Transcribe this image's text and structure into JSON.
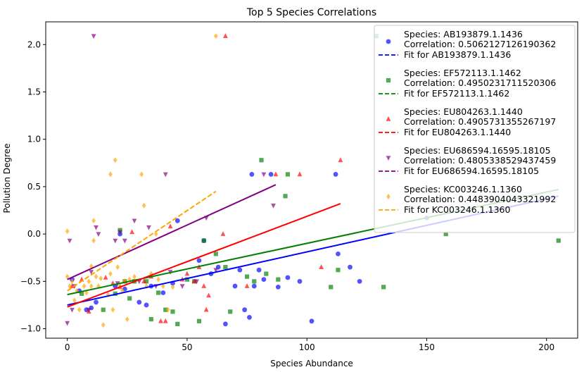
{
  "chart_data": {
    "type": "scatter",
    "title": "Top 5 Species Correlations",
    "xlabel": "Species Abundance",
    "ylabel": "Pollution Degree",
    "xlim": [
      -9,
      213
    ],
    "ylim": [
      -1.1,
      2.24
    ],
    "xticks": [
      0,
      50,
      100,
      150,
      200
    ],
    "yticks": [
      -1.0,
      -0.5,
      0.0,
      0.5,
      1.0,
      1.5,
      2.0
    ],
    "xtick_labels": [
      "0",
      "50",
      "100",
      "150",
      "200"
    ],
    "ytick_labels": [
      "−1.0",
      "−0.5",
      "0.0",
      "0.5",
      "1.0",
      "1.5",
      "2.0"
    ],
    "grid": false,
    "legend_position": "upper right",
    "series": [
      {
        "name": "Species: AB193879.1.1436",
        "correlation_label": "Correlation: 0.5062127126190362",
        "fit_label": "Fit for AB193879.1.1436",
        "color": "#0000ff",
        "marker": "circle",
        "fit": {
          "x": [
            0,
            205
          ],
          "y": [
            -0.75,
            0.4
          ]
        },
        "points": [
          [
            2,
            -0.48
          ],
          [
            5,
            -0.6
          ],
          [
            8,
            -0.8
          ],
          [
            10,
            -0.78
          ],
          [
            12,
            -0.72
          ],
          [
            20,
            -0.55
          ],
          [
            22,
            0.0
          ],
          [
            24,
            -0.58
          ],
          [
            30,
            -0.72
          ],
          [
            33,
            -0.75
          ],
          [
            35,
            -0.55
          ],
          [
            40,
            -0.62
          ],
          [
            44,
            -0.52
          ],
          [
            46,
            0.14
          ],
          [
            55,
            -0.28
          ],
          [
            57,
            -0.07
          ],
          [
            60,
            -0.42
          ],
          [
            63,
            -0.35
          ],
          [
            66,
            -0.95
          ],
          [
            70,
            -0.55
          ],
          [
            72,
            -0.38
          ],
          [
            74,
            -0.8
          ],
          [
            76,
            -0.88
          ],
          [
            77,
            0.63
          ],
          [
            78,
            -0.55
          ],
          [
            80,
            -0.38
          ],
          [
            82,
            -0.48
          ],
          [
            85,
            0.63
          ],
          [
            88,
            -0.56
          ],
          [
            92,
            -0.46
          ],
          [
            97,
            -0.5
          ],
          [
            102,
            -0.92
          ],
          [
            112,
            0.63
          ],
          [
            113,
            -0.21
          ],
          [
            118,
            -0.35
          ],
          [
            122,
            -0.5
          ],
          [
            150,
            0.17
          ]
        ]
      },
      {
        "name": "Species: EF572113.1.1462",
        "correlation_label": "Correlation: 0.4950231711520306",
        "fit_label": "Fit for EF572113.1.1462",
        "color": "#008000",
        "marker": "square",
        "fit": {
          "x": [
            0,
            205
          ],
          "y": [
            -0.64,
            0.47
          ]
        },
        "points": [
          [
            6,
            -0.63
          ],
          [
            15,
            -0.8
          ],
          [
            20,
            -0.63
          ],
          [
            22,
            0.04
          ],
          [
            24,
            -0.5
          ],
          [
            26,
            -0.68
          ],
          [
            28,
            -0.5
          ],
          [
            33,
            -0.5
          ],
          [
            35,
            -0.9
          ],
          [
            38,
            -0.62
          ],
          [
            41,
            -0.8
          ],
          [
            44,
            -0.82
          ],
          [
            46,
            -0.95
          ],
          [
            50,
            -0.48
          ],
          [
            53,
            -0.5
          ],
          [
            55,
            -0.92
          ],
          [
            57,
            -0.07
          ],
          [
            62,
            -0.21
          ],
          [
            66,
            -0.35
          ],
          [
            68,
            -0.82
          ],
          [
            75,
            -0.45
          ],
          [
            78,
            -0.5
          ],
          [
            81,
            0.78
          ],
          [
            83,
            -0.42
          ],
          [
            88,
            -0.48
          ],
          [
            91,
            0.4
          ],
          [
            92,
            0.63
          ],
          [
            110,
            -0.56
          ],
          [
            113,
            -0.38
          ],
          [
            132,
            -0.56
          ],
          [
            158,
            0.0
          ],
          [
            205,
            -0.07
          ],
          [
            129,
            2.09
          ]
        ]
      },
      {
        "name": "Species: EU804263.1.1440",
        "correlation_label": "Correlation: 0.4905731355267197",
        "fit_label": "Fit for EU804263.1.1440",
        "color": "#ff0000",
        "marker": "triangle-up",
        "fit": {
          "x": [
            0,
            114
          ],
          "y": [
            -0.77,
            0.32
          ]
        },
        "points": [
          [
            2,
            -0.55
          ],
          [
            6,
            -0.48
          ],
          [
            9,
            -0.82
          ],
          [
            16,
            -0.46
          ],
          [
            19,
            -0.52
          ],
          [
            22,
            -0.56
          ],
          [
            24,
            -0.5
          ],
          [
            27,
            0.02
          ],
          [
            32,
            -0.5
          ],
          [
            35,
            -0.45
          ],
          [
            39,
            -0.92
          ],
          [
            41,
            -0.92
          ],
          [
            43,
            0.08
          ],
          [
            48,
            -0.48
          ],
          [
            50,
            -0.42
          ],
          [
            53,
            -0.5
          ],
          [
            55,
            -0.35
          ],
          [
            57,
            -0.55
          ],
          [
            58,
            -0.8
          ],
          [
            59,
            -0.65
          ],
          [
            65,
            0.0
          ],
          [
            66,
            2.09
          ],
          [
            75,
            -0.55
          ],
          [
            87,
            0.63
          ],
          [
            97,
            0.63
          ],
          [
            106,
            -0.35
          ],
          [
            114,
            0.78
          ]
        ]
      },
      {
        "name": "Species: EU686594.16595.18105",
        "correlation_label": "Correlation: 0.4805338529437459",
        "fit_label": "Fit for EU686594.16595.18105",
        "color": "#800080",
        "marker": "triangle-down",
        "fit": {
          "x": [
            0,
            87
          ],
          "y": [
            -0.48,
            0.52
          ]
        },
        "points": [
          [
            0,
            -0.94
          ],
          [
            1,
            -0.07
          ],
          [
            2,
            -0.8
          ],
          [
            3,
            -0.55
          ],
          [
            9,
            -0.8
          ],
          [
            10,
            -0.4
          ],
          [
            11,
            2.09
          ],
          [
            12,
            0.07
          ],
          [
            13,
            0.0
          ],
          [
            20,
            -0.07
          ],
          [
            21,
            -0.52
          ],
          [
            22,
            0.02
          ],
          [
            24,
            -0.07
          ],
          [
            28,
            0.14
          ],
          [
            30,
            -0.5
          ],
          [
            34,
            0.07
          ],
          [
            37,
            -0.55
          ],
          [
            41,
            0.63
          ],
          [
            43,
            -0.4
          ],
          [
            48,
            -0.55
          ],
          [
            54,
            -0.5
          ],
          [
            58,
            0.17
          ],
          [
            62,
            -0.38
          ],
          [
            82,
            0.63
          ],
          [
            86,
            0.3
          ]
        ]
      },
      {
        "name": "Species: KC003246.1.1360",
        "correlation_label": "Correlation: 0.4483904043321992",
        "fit_label": "Fit for KC003246.1.1360",
        "color": "#ffa500",
        "marker": "diamond",
        "fit": {
          "x": [
            0,
            62
          ],
          "y": [
            -0.6,
            0.45
          ]
        },
        "points": [
          [
            0,
            0.03
          ],
          [
            0,
            -0.45
          ],
          [
            1,
            -0.55
          ],
          [
            2,
            -0.5
          ],
          [
            3,
            -0.7
          ],
          [
            4,
            -0.6
          ],
          [
            5,
            -0.8
          ],
          [
            7,
            -0.55
          ],
          [
            8,
            -0.62
          ],
          [
            9,
            -0.5
          ],
          [
            10,
            -0.34
          ],
          [
            10,
            -0.55
          ],
          [
            11,
            -0.07
          ],
          [
            11,
            0.14
          ],
          [
            12,
            -0.45
          ],
          [
            13,
            -0.55
          ],
          [
            14,
            -0.47
          ],
          [
            15,
            -0.96
          ],
          [
            17,
            -0.64
          ],
          [
            18,
            -0.42
          ],
          [
            18,
            0.63
          ],
          [
            19,
            -0.8
          ],
          [
            20,
            0.78
          ],
          [
            21,
            -0.35
          ],
          [
            22,
            -0.55
          ],
          [
            23,
            -0.6
          ],
          [
            24,
            -0.5
          ],
          [
            25,
            -0.9
          ],
          [
            26,
            -0.48
          ],
          [
            28,
            -0.45
          ],
          [
            31,
            0.63
          ],
          [
            32,
            0.3
          ],
          [
            33,
            -0.55
          ],
          [
            35,
            -0.42
          ],
          [
            37,
            0.0
          ],
          [
            38,
            -0.48
          ],
          [
            40,
            -0.55
          ],
          [
            42,
            -0.8
          ],
          [
            44,
            -0.56
          ],
          [
            62,
            2.09
          ]
        ]
      }
    ]
  }
}
